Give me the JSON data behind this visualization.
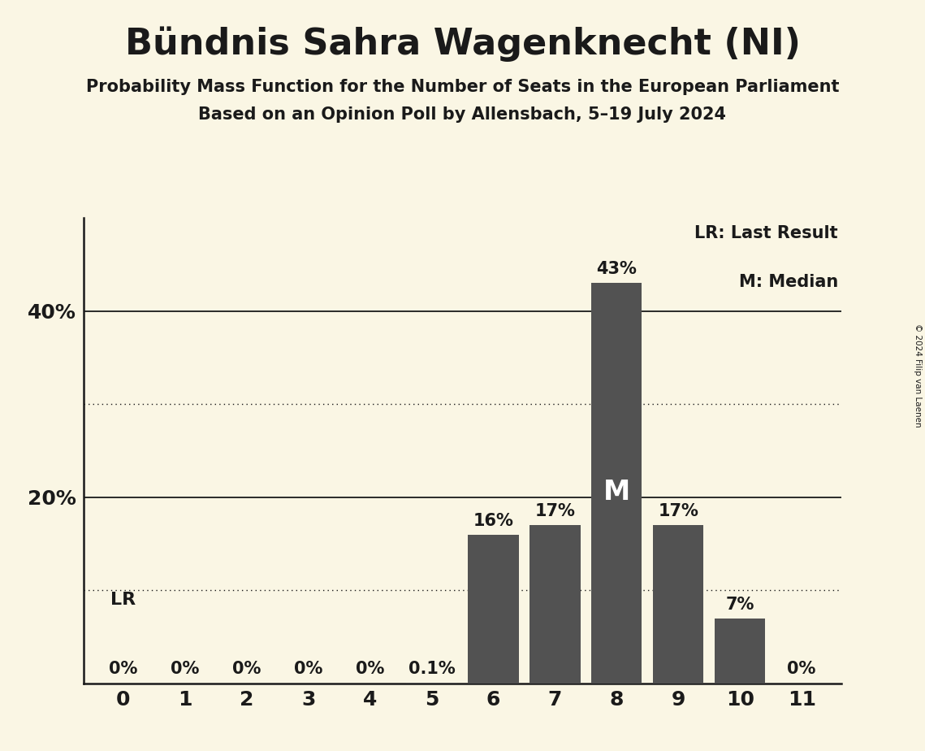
{
  "title": "Bündnis Sahra Wagenknecht (NI)",
  "subtitle1": "Probability Mass Function for the Number of Seats in the European Parliament",
  "subtitle2": "Based on an Opinion Poll by Allensbach, 5–19 July 2024",
  "copyright": "© 2024 Filip van Laenen",
  "categories": [
    0,
    1,
    2,
    3,
    4,
    5,
    6,
    7,
    8,
    9,
    10,
    11
  ],
  "values": [
    0.0,
    0.0,
    0.0,
    0.0,
    0.0,
    0.001,
    0.16,
    0.17,
    0.43,
    0.17,
    0.07,
    0.0
  ],
  "bar_labels": [
    "0%",
    "0%",
    "0%",
    "0%",
    "0%",
    "0.1%",
    "16%",
    "17%",
    "43%",
    "17%",
    "7%",
    "0%"
  ],
  "bar_color": "#525252",
  "background_color": "#faf6e4",
  "text_color": "#1a1a1a",
  "median_seat": 8,
  "median_label": "M",
  "lr_label": "LR",
  "legend_lr": "LR: Last Result",
  "legend_m": "M: Median",
  "ylim": [
    0,
    0.5
  ],
  "solid_yticks": [
    0.2,
    0.4
  ],
  "dotted_yticks": [
    0.1,
    0.3
  ],
  "title_fontsize": 32,
  "subtitle_fontsize": 15,
  "bar_label_fontsize": 15,
  "axis_fontsize": 18
}
